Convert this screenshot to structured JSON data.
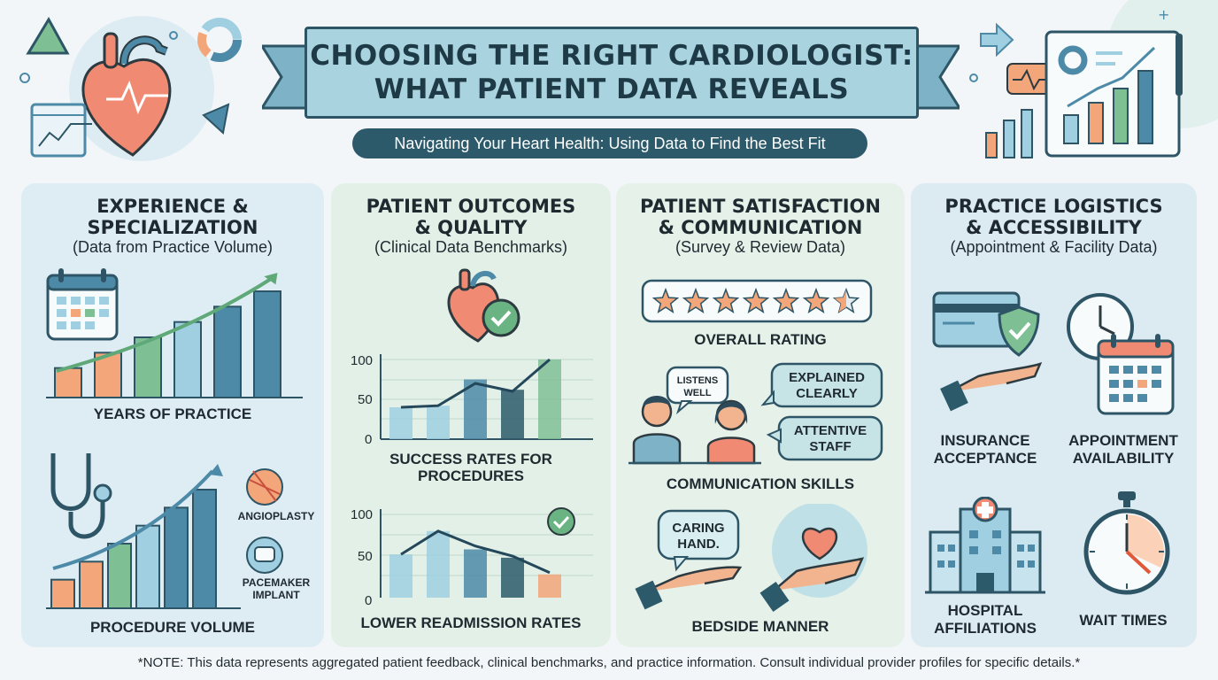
{
  "header": {
    "title_line1": "CHOOSING THE RIGHT CARDIOLOGIST:",
    "title_line2": "WHAT PATIENT DATA REVEALS",
    "subtitle": "Navigating Your Heart Health: Using Data to Find the Best Fit"
  },
  "colors": {
    "navy": "#2d5a6b",
    "teal": "#4d8aa8",
    "green": "#7fbf94",
    "orange": "#f2a679",
    "light_blue": "#9fcfe0"
  },
  "panels": {
    "experience": {
      "title_line1": "EXPERIENCE &",
      "title_line2": "SPECIALIZATION",
      "subtitle": "(Data from Practice Volume)",
      "chart1_label": "YEARS OF PRACTICE",
      "chart2_label": "PROCEDURE VOLUME",
      "badge1": "ANGIOPLASTY",
      "badge2_line1": "PACEMAKER",
      "badge2_line2": "IMPLANT",
      "years_chart": {
        "values": [
          1,
          2,
          3,
          4,
          5,
          6
        ]
      },
      "volume_chart": {
        "values": [
          1,
          2,
          3,
          4,
          5,
          6
        ]
      }
    },
    "outcomes": {
      "title_line1": "PATIENT OUTCOMES",
      "title_line2": "& QUALITY",
      "subtitle": "(Clinical Data Benchmarks)",
      "chart1_label_line1": "SUCCESS RATES FOR",
      "chart1_label_line2": "PROCEDURES",
      "chart2_label": "LOWER READMISSION RATES",
      "ticks": [
        "100",
        "50",
        "0"
      ],
      "success_chart": {
        "type": "bar",
        "y_ticks": [
          0,
          50,
          100
        ],
        "ylim": [
          0,
          100
        ],
        "values": [
          40,
          42,
          75,
          62,
          100
        ],
        "line": [
          40,
          42,
          70,
          60,
          100
        ]
      },
      "readmission_chart": {
        "type": "bar",
        "y_ticks": [
          0,
          50,
          100
        ],
        "ylim": [
          0,
          100
        ],
        "values": [
          52,
          80,
          58,
          48,
          28
        ],
        "line": [
          52,
          80,
          62,
          50,
          30
        ]
      }
    },
    "satisfaction": {
      "title_line1": "PATIENT SATISFACTION",
      "title_line2": "& COMMUNICATION",
      "subtitle": "(Survey & Review Data)",
      "rating_label": "OVERALL RATING",
      "rating": {
        "stars": 6.5,
        "max": 7
      },
      "bubble1_line1": "LISTENS",
      "bubble1_line2": "WELL",
      "bubble2_line1": "EXPLAINED",
      "bubble2_line2": "CLEARLY",
      "bubble3_line1": "ATTENTIVE",
      "bubble3_line2": "STAFF",
      "comm_label": "COMMUNICATION SKILLS",
      "bubble4_line1": "CARING",
      "bubble4_line2": "HAND.",
      "bedside_label": "BEDSIDE MANNER"
    },
    "logistics": {
      "title_line1": "PRACTICE LOGISTICS",
      "title_line2": "& ACCESSIBILITY",
      "subtitle": "(Appointment & Facility Data)",
      "insurance_line1": "INSURANCE",
      "insurance_line2": "ACCEPTANCE",
      "appointment_line1": "APPOINTMENT",
      "appointment_line2": "AVAILABILITY",
      "hospital_line1": "HOSPITAL",
      "hospital_line2": "AFFILIATIONS",
      "wait_label": "WAIT TIMES"
    }
  },
  "footnote": "*NOTE: This data represents aggregated patient feedback, clinical benchmarks, and practice information. Consult individual provider profiles for specific details.*"
}
